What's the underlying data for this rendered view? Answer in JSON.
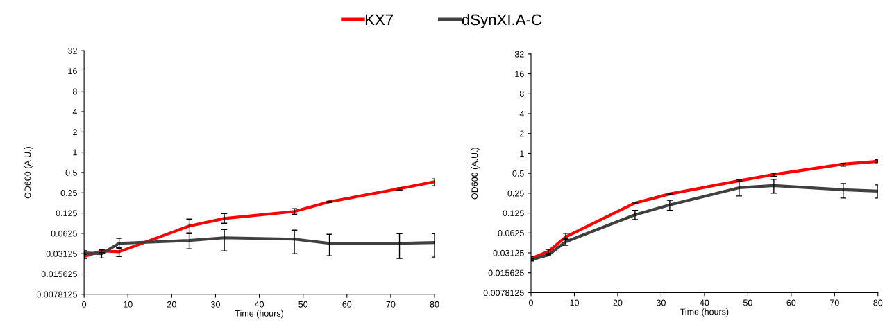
{
  "chart_data": [
    {
      "type": "line",
      "xlabel": "Time (hours)",
      "ylabel": "OD600 (A.U.)",
      "log": "y",
      "legend": "top",
      "xlim": [
        0,
        80
      ],
      "xticks": [
        0,
        10,
        20,
        30,
        40,
        50,
        60,
        70,
        80
      ],
      "ylim": [
        0.0078125,
        32
      ],
      "yticks": [
        0.0078125,
        0.015625,
        0.03125,
        0.0625,
        0.125,
        0.25,
        0.5,
        1,
        2,
        4,
        8,
        16,
        32
      ],
      "grid": false,
      "marker": "none",
      "line_style": "solid",
      "series": [
        {
          "name": "KX7",
          "color": "#ff0000",
          "x": [
            0,
            4,
            8,
            24,
            32,
            48,
            56,
            72,
            80
          ],
          "values": [
            0.0284,
            0.0343,
            0.0334,
            0.0804,
            0.104,
            0.132,
            0.184,
            0.288,
            0.365
          ],
          "errors": [
            [
              0.0265,
              0.0343
            ],
            [
              0.0323,
              0.0358
            ],
            [
              0.0284,
              0.0386
            ],
            [
              0.062,
              0.102
            ],
            [
              0.0884,
              0.123
            ],
            [
              0.12,
              0.145
            ],
            [
              0.18,
              0.188
            ],
            [
              0.275,
              0.295
            ],
            [
              0.317,
              0.401
            ]
          ]
        },
        {
          "name": "dSynXI.A-C",
          "color": "#404040",
          "x": [
            0,
            4,
            8,
            24,
            32,
            48,
            56,
            72,
            80
          ],
          "values": [
            0.032,
            0.03125,
            0.0445,
            0.049,
            0.0538,
            0.0513,
            0.0445,
            0.0445,
            0.0456
          ],
          "errors": [
            [
              0.0305,
              0.0343
            ],
            [
              0.027,
              0.0358
            ],
            [
              0.0377,
              0.0526
            ],
            [
              0.0369,
              0.0635
            ],
            [
              0.0343,
              0.0715
            ],
            [
              0.0312,
              0.0698
            ],
            [
              0.0291,
              0.0605
            ],
            [
              0.0265,
              0.062
            ],
            [
              0.0278,
              0.062
            ]
          ]
        }
      ]
    },
    {
      "type": "line",
      "xlabel": "Time (hours)",
      "ylabel": "OD600 (A.U.)",
      "log": "y",
      "legend": "top",
      "xlim": [
        0,
        80
      ],
      "xticks": [
        0,
        10,
        20,
        30,
        40,
        50,
        60,
        70,
        80
      ],
      "ylim": [
        0.0078125,
        32
      ],
      "yticks": [
        0.0078125,
        0.015625,
        0.03125,
        0.0625,
        0.125,
        0.25,
        0.5,
        1,
        2,
        4,
        8,
        16,
        32
      ],
      "grid": false,
      "marker": "none",
      "line_style": "solid",
      "series": [
        {
          "name": "KX7",
          "color": "#ff0000",
          "x": [
            0,
            4,
            8,
            24,
            32,
            48,
            56,
            72,
            80
          ],
          "values": [
            0.0257,
            0.0328,
            0.0545,
            0.178,
            0.244,
            0.386,
            0.48,
            0.69,
            0.76
          ],
          "errors": [
            [
              0.0239,
              0.0277
            ],
            [
              0.0305,
              0.0353
            ],
            [
              0.0506,
              0.0616
            ],
            [
              0.173,
              0.183
            ],
            [
              0.238,
              0.25
            ],
            [
              0.377,
              0.395
            ],
            [
              0.447,
              0.504
            ],
            [
              0.642,
              0.707
            ],
            [
              0.724,
              0.798
            ]
          ]
        },
        {
          "name": "dSynXI.A-C",
          "color": "#404040",
          "x": [
            0,
            4,
            8,
            24,
            32,
            48,
            56,
            72,
            80
          ],
          "values": [
            0.0245,
            0.0291,
            0.046,
            0.118,
            0.166,
            0.303,
            0.326,
            0.282,
            0.269
          ],
          "errors": [
            [
              0.0235,
              0.0255
            ],
            [
              0.0282,
              0.03
            ],
            [
              0.0408,
              0.0506
            ],
            [
              0.0998,
              0.137
            ],
            [
              0.137,
              0.196
            ],
            [
              0.227,
              0.377
            ],
            [
              0.25,
              0.405
            ],
            [
              0.211,
              0.35
            ],
            [
              0.211,
              0.334
            ]
          ]
        }
      ]
    }
  ]
}
